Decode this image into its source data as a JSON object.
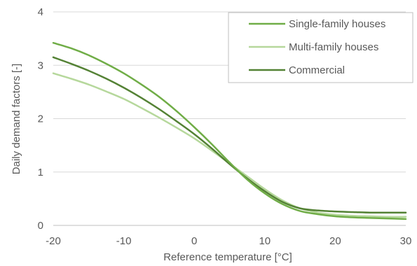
{
  "chart_data": {
    "type": "line",
    "xlabel": "Reference temperature [°C]",
    "ylabel": "Daily demand factors [-]",
    "xlim": [
      -20,
      30
    ],
    "ylim": [
      0,
      4
    ],
    "xticks": [
      -20,
      -10,
      0,
      10,
      20,
      30
    ],
    "yticks": [
      0,
      1,
      2,
      3,
      4
    ],
    "grid": "horizontal",
    "legend_position": "top-right",
    "x": [
      -20,
      -17.5,
      -15,
      -12.5,
      -10,
      -7.5,
      -5,
      -2.5,
      0,
      2.5,
      5,
      7.5,
      10,
      12.5,
      15,
      17.5,
      20,
      22.5,
      25,
      27.5,
      30
    ],
    "series": [
      {
        "name": "Single-family houses",
        "color": "#70ad47",
        "values": [
          3.42,
          3.32,
          3.19,
          3.03,
          2.85,
          2.64,
          2.41,
          2.14,
          1.84,
          1.52,
          1.18,
          0.86,
          0.6,
          0.4,
          0.27,
          0.21,
          0.17,
          0.15,
          0.14,
          0.13,
          0.12
        ]
      },
      {
        "name": "Multi-family houses",
        "color": "#b6d89c",
        "values": [
          2.85,
          2.75,
          2.64,
          2.51,
          2.37,
          2.2,
          2.02,
          1.83,
          1.63,
          1.4,
          1.16,
          0.92,
          0.68,
          0.47,
          0.32,
          0.24,
          0.2,
          0.18,
          0.17,
          0.16,
          0.16
        ]
      },
      {
        "name": "Commercial",
        "color": "#548235",
        "values": [
          3.15,
          3.03,
          2.9,
          2.75,
          2.58,
          2.39,
          2.18,
          1.95,
          1.71,
          1.44,
          1.15,
          0.88,
          0.64,
          0.44,
          0.32,
          0.28,
          0.26,
          0.25,
          0.24,
          0.24,
          0.24
        ]
      }
    ]
  }
}
